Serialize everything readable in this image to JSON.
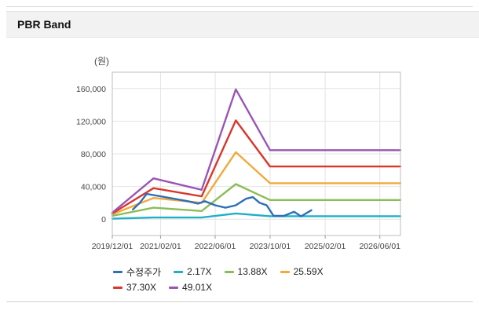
{
  "panel": {
    "title": "PBR Band"
  },
  "chart_data": {
    "type": "line",
    "title": "PBR Band",
    "unit_label": "(원)",
    "xlabel": "",
    "ylabel": "(원)",
    "xlim": [
      "2019-12-01",
      "2026-12-01"
    ],
    "ylim": [
      -20000,
      180000
    ],
    "y_ticks": [
      0,
      40000,
      80000,
      120000,
      160000
    ],
    "y_tick_labels": [
      "0",
      "40,000",
      "80,000",
      "120,000",
      "160,000"
    ],
    "x_ticks": [
      "2019-12-01",
      "2021-02-01",
      "2022-06-01",
      "2023-10-01",
      "2025-02-01",
      "2026-06-01"
    ],
    "x_tick_labels": [
      "2019/12/01",
      "2021/02/01",
      "2022/06/01",
      "2023/10/01",
      "2025/02/01",
      "2026/06/01"
    ],
    "grid": true,
    "legend_position": "bottom",
    "series": [
      {
        "name": "수정주가",
        "color": "#2e6fb5",
        "points": [
          [
            "2020-06-01",
            12000
          ],
          [
            "2020-08-01",
            20000
          ],
          [
            "2020-10-01",
            31000
          ],
          [
            "2021-02-01",
            28000
          ],
          [
            "2021-06-01",
            25000
          ],
          [
            "2021-10-01",
            22000
          ],
          [
            "2022-01-01",
            19000
          ],
          [
            "2022-03-01",
            22000
          ],
          [
            "2022-06-01",
            17000
          ],
          [
            "2022-09-01",
            14000
          ],
          [
            "2022-12-01",
            17000
          ],
          [
            "2023-03-01",
            25000
          ],
          [
            "2023-05-01",
            27000
          ],
          [
            "2023-07-01",
            20000
          ],
          [
            "2023-09-01",
            17000
          ],
          [
            "2023-11-01",
            4000
          ],
          [
            "2024-02-01",
            4000
          ],
          [
            "2024-05-01",
            9000
          ],
          [
            "2024-07-01",
            3500
          ],
          [
            "2024-10-01",
            11000
          ]
        ]
      },
      {
        "name": "2.17X",
        "color": "#1fb0c7",
        "points": [
          [
            "2019-12-01",
            600
          ],
          [
            "2020-12-01",
            2000
          ],
          [
            "2022-02-01",
            2000
          ],
          [
            "2022-12-01",
            7000
          ],
          [
            "2023-10-01",
            3700
          ],
          [
            "2026-12-01",
            3700
          ]
        ]
      },
      {
        "name": "13.88X",
        "color": "#8bbd55",
        "points": [
          [
            "2019-12-01",
            4000
          ],
          [
            "2020-12-01",
            14000
          ],
          [
            "2022-02-01",
            10000
          ],
          [
            "2022-12-01",
            43000
          ],
          [
            "2023-10-01",
            23500
          ],
          [
            "2026-12-01",
            23500
          ]
        ]
      },
      {
        "name": "25.59X",
        "color": "#f0aa3c",
        "points": [
          [
            "2019-12-01",
            6000
          ],
          [
            "2020-12-01",
            26000
          ],
          [
            "2022-02-01",
            20000
          ],
          [
            "2022-12-01",
            82000
          ],
          [
            "2023-10-01",
            44000
          ],
          [
            "2026-12-01",
            44000
          ]
        ]
      },
      {
        "name": "37.30X",
        "color": "#d9362c",
        "points": [
          [
            "2019-12-01",
            7000
          ],
          [
            "2020-12-01",
            38000
          ],
          [
            "2022-02-01",
            28000
          ],
          [
            "2022-12-01",
            121000
          ],
          [
            "2023-10-01",
            64500
          ],
          [
            "2026-12-01",
            64500
          ]
        ]
      },
      {
        "name": "49.01X",
        "color": "#9a55b5",
        "points": [
          [
            "2019-12-01",
            8000
          ],
          [
            "2020-12-01",
            50000
          ],
          [
            "2022-02-01",
            36000
          ],
          [
            "2022-12-01",
            159000
          ],
          [
            "2023-10-01",
            84500
          ],
          [
            "2026-12-01",
            84500
          ]
        ]
      }
    ]
  }
}
